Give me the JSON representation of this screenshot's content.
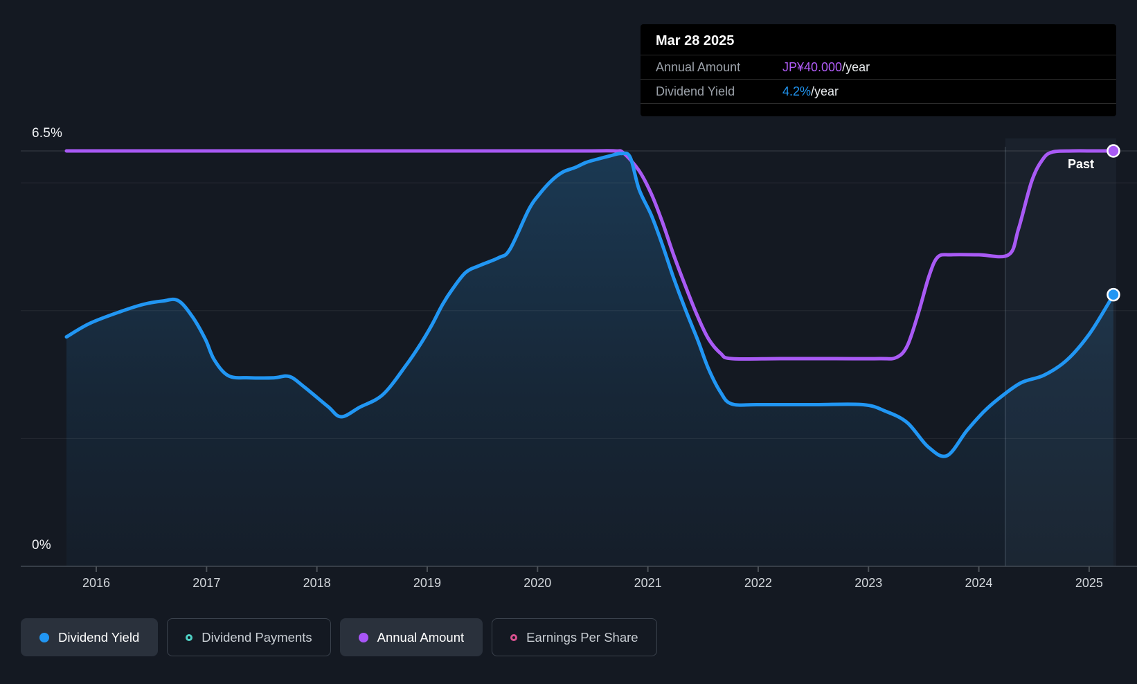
{
  "page": {
    "past_label": "Past"
  },
  "y_axis": {
    "top_label": "6.5%",
    "zero_label": "0%"
  },
  "x_axis": {
    "years": [
      "2016",
      "2017",
      "2018",
      "2019",
      "2020",
      "2021",
      "2022",
      "2023",
      "2024",
      "2025"
    ]
  },
  "tooltip": {
    "date": "Mar 28 2025",
    "rows": [
      {
        "label": "Annual Amount",
        "value": "JP¥40.000",
        "suffix": "/year",
        "value_color": "#b15cf8"
      },
      {
        "label": "Dividend Yield",
        "value": "4.2%",
        "suffix": "/year",
        "value_color": "#2196f3"
      }
    ]
  },
  "legend": [
    {
      "label": "Dividend Yield",
      "color": "#2196f3",
      "style": "filled",
      "active": true
    },
    {
      "label": "Dividend Payments",
      "color": "#4fd1c5",
      "style": "ring",
      "active": false
    },
    {
      "label": "Annual Amount",
      "color": "#a855f7",
      "style": "filled",
      "active": true
    },
    {
      "label": "Earnings Per Share",
      "color": "#d9518f",
      "style": "ring",
      "active": false
    }
  ],
  "colors": {
    "background": "#141922",
    "blue": "#2196f3",
    "purple": "#a95af5",
    "grid_major": "rgba(255,255,255,0.16)",
    "grid_minor": "rgba(255,255,255,0.07)",
    "axis_line": "#434a54",
    "band_fill": "rgba(140,180,215,0.055)",
    "band_edge": "rgba(190,210,230,0.28)"
  },
  "chart_data": {
    "type": "area",
    "title": "Dividend history",
    "x_domain": [
      2015.73,
      2025.22
    ],
    "y_domain_pct": [
      0,
      6.5
    ],
    "gridlines_pct": [
      6.5,
      6.0,
      4.0,
      2.0
    ],
    "x_tick_years": [
      2016,
      2017,
      2018,
      2019,
      2020,
      2021,
      2022,
      2023,
      2024,
      2025
    ],
    "highlight_band_start_year": 2024.24,
    "legend_position": "bottom",
    "tooltip_point": {
      "date": "Mar 28 2025",
      "annual_amount": "JP¥40.000/year",
      "dividend_yield": "4.2%/year"
    },
    "series": [
      {
        "name": "Dividend Yield",
        "unit": "%",
        "color": "#2196f3",
        "render": "line+area",
        "points": [
          [
            2015.73,
            3.59
          ],
          [
            2015.94,
            3.8
          ],
          [
            2016.21,
            3.98
          ],
          [
            2016.43,
            4.1
          ],
          [
            2016.6,
            4.15
          ],
          [
            2016.74,
            4.16
          ],
          [
            2016.87,
            3.91
          ],
          [
            2016.99,
            3.55
          ],
          [
            2017.07,
            3.23
          ],
          [
            2017.2,
            2.98
          ],
          [
            2017.39,
            2.95
          ],
          [
            2017.61,
            2.95
          ],
          [
            2017.75,
            2.97
          ],
          [
            2017.89,
            2.8
          ],
          [
            2018.1,
            2.5
          ],
          [
            2018.22,
            2.34
          ],
          [
            2018.39,
            2.49
          ],
          [
            2018.6,
            2.69
          ],
          [
            2018.81,
            3.15
          ],
          [
            2018.94,
            3.48
          ],
          [
            2019.04,
            3.77
          ],
          [
            2019.14,
            4.1
          ],
          [
            2019.23,
            4.34
          ],
          [
            2019.35,
            4.6
          ],
          [
            2019.48,
            4.71
          ],
          [
            2019.65,
            4.83
          ],
          [
            2019.75,
            4.96
          ],
          [
            2019.92,
            5.58
          ],
          [
            2020.02,
            5.83
          ],
          [
            2020.13,
            6.04
          ],
          [
            2020.23,
            6.17
          ],
          [
            2020.34,
            6.24
          ],
          [
            2020.44,
            6.32
          ],
          [
            2020.54,
            6.37
          ],
          [
            2020.65,
            6.42
          ],
          [
            2020.76,
            6.46
          ],
          [
            2020.84,
            6.4
          ],
          [
            2020.92,
            5.9
          ],
          [
            2021.03,
            5.5
          ],
          [
            2021.13,
            5.04
          ],
          [
            2021.23,
            4.53
          ],
          [
            2021.34,
            4.02
          ],
          [
            2021.45,
            3.55
          ],
          [
            2021.55,
            3.09
          ],
          [
            2021.66,
            2.72
          ],
          [
            2021.76,
            2.54
          ],
          [
            2022.0,
            2.53
          ],
          [
            2022.5,
            2.53
          ],
          [
            2022.95,
            2.53
          ],
          [
            2023.15,
            2.43
          ],
          [
            2023.35,
            2.25
          ],
          [
            2023.54,
            1.87
          ],
          [
            2023.71,
            1.73
          ],
          [
            2023.89,
            2.12
          ],
          [
            2024.04,
            2.41
          ],
          [
            2024.17,
            2.61
          ],
          [
            2024.38,
            2.87
          ],
          [
            2024.59,
            2.99
          ],
          [
            2024.8,
            3.23
          ],
          [
            2025.0,
            3.63
          ],
          [
            2025.17,
            4.1
          ],
          [
            2025.22,
            4.25
          ]
        ]
      },
      {
        "name": "Annual Amount",
        "unit": "JP¥/year",
        "color": "#a95af5",
        "render": "line",
        "points": [
          [
            2015.73,
            40
          ],
          [
            2016.5,
            40
          ],
          [
            2017.5,
            40
          ],
          [
            2018.5,
            40
          ],
          [
            2019.5,
            40
          ],
          [
            2020.4,
            40
          ],
          [
            2020.7,
            40
          ],
          [
            2020.78,
            39.8
          ],
          [
            2020.92,
            38.1
          ],
          [
            2021.03,
            35.9
          ],
          [
            2021.13,
            33.2
          ],
          [
            2021.23,
            30.1
          ],
          [
            2021.34,
            27.0
          ],
          [
            2021.45,
            24.1
          ],
          [
            2021.55,
            21.9
          ],
          [
            2021.66,
            20.5
          ],
          [
            2021.76,
            20.0
          ],
          [
            2022.2,
            20.0
          ],
          [
            2022.7,
            20.0
          ],
          [
            2023.1,
            20.0
          ],
          [
            2023.25,
            20.1
          ],
          [
            2023.35,
            21.2
          ],
          [
            2023.45,
            24.3
          ],
          [
            2023.55,
            28.0
          ],
          [
            2023.63,
            29.8
          ],
          [
            2023.75,
            30.0
          ],
          [
            2024.0,
            30.0
          ],
          [
            2024.27,
            30.0
          ],
          [
            2024.36,
            32.5
          ],
          [
            2024.48,
            37.1
          ],
          [
            2024.58,
            39.2
          ],
          [
            2024.67,
            39.9
          ],
          [
            2024.85,
            40.0
          ],
          [
            2025.05,
            40.0
          ],
          [
            2025.22,
            40.0
          ]
        ]
      }
    ]
  }
}
